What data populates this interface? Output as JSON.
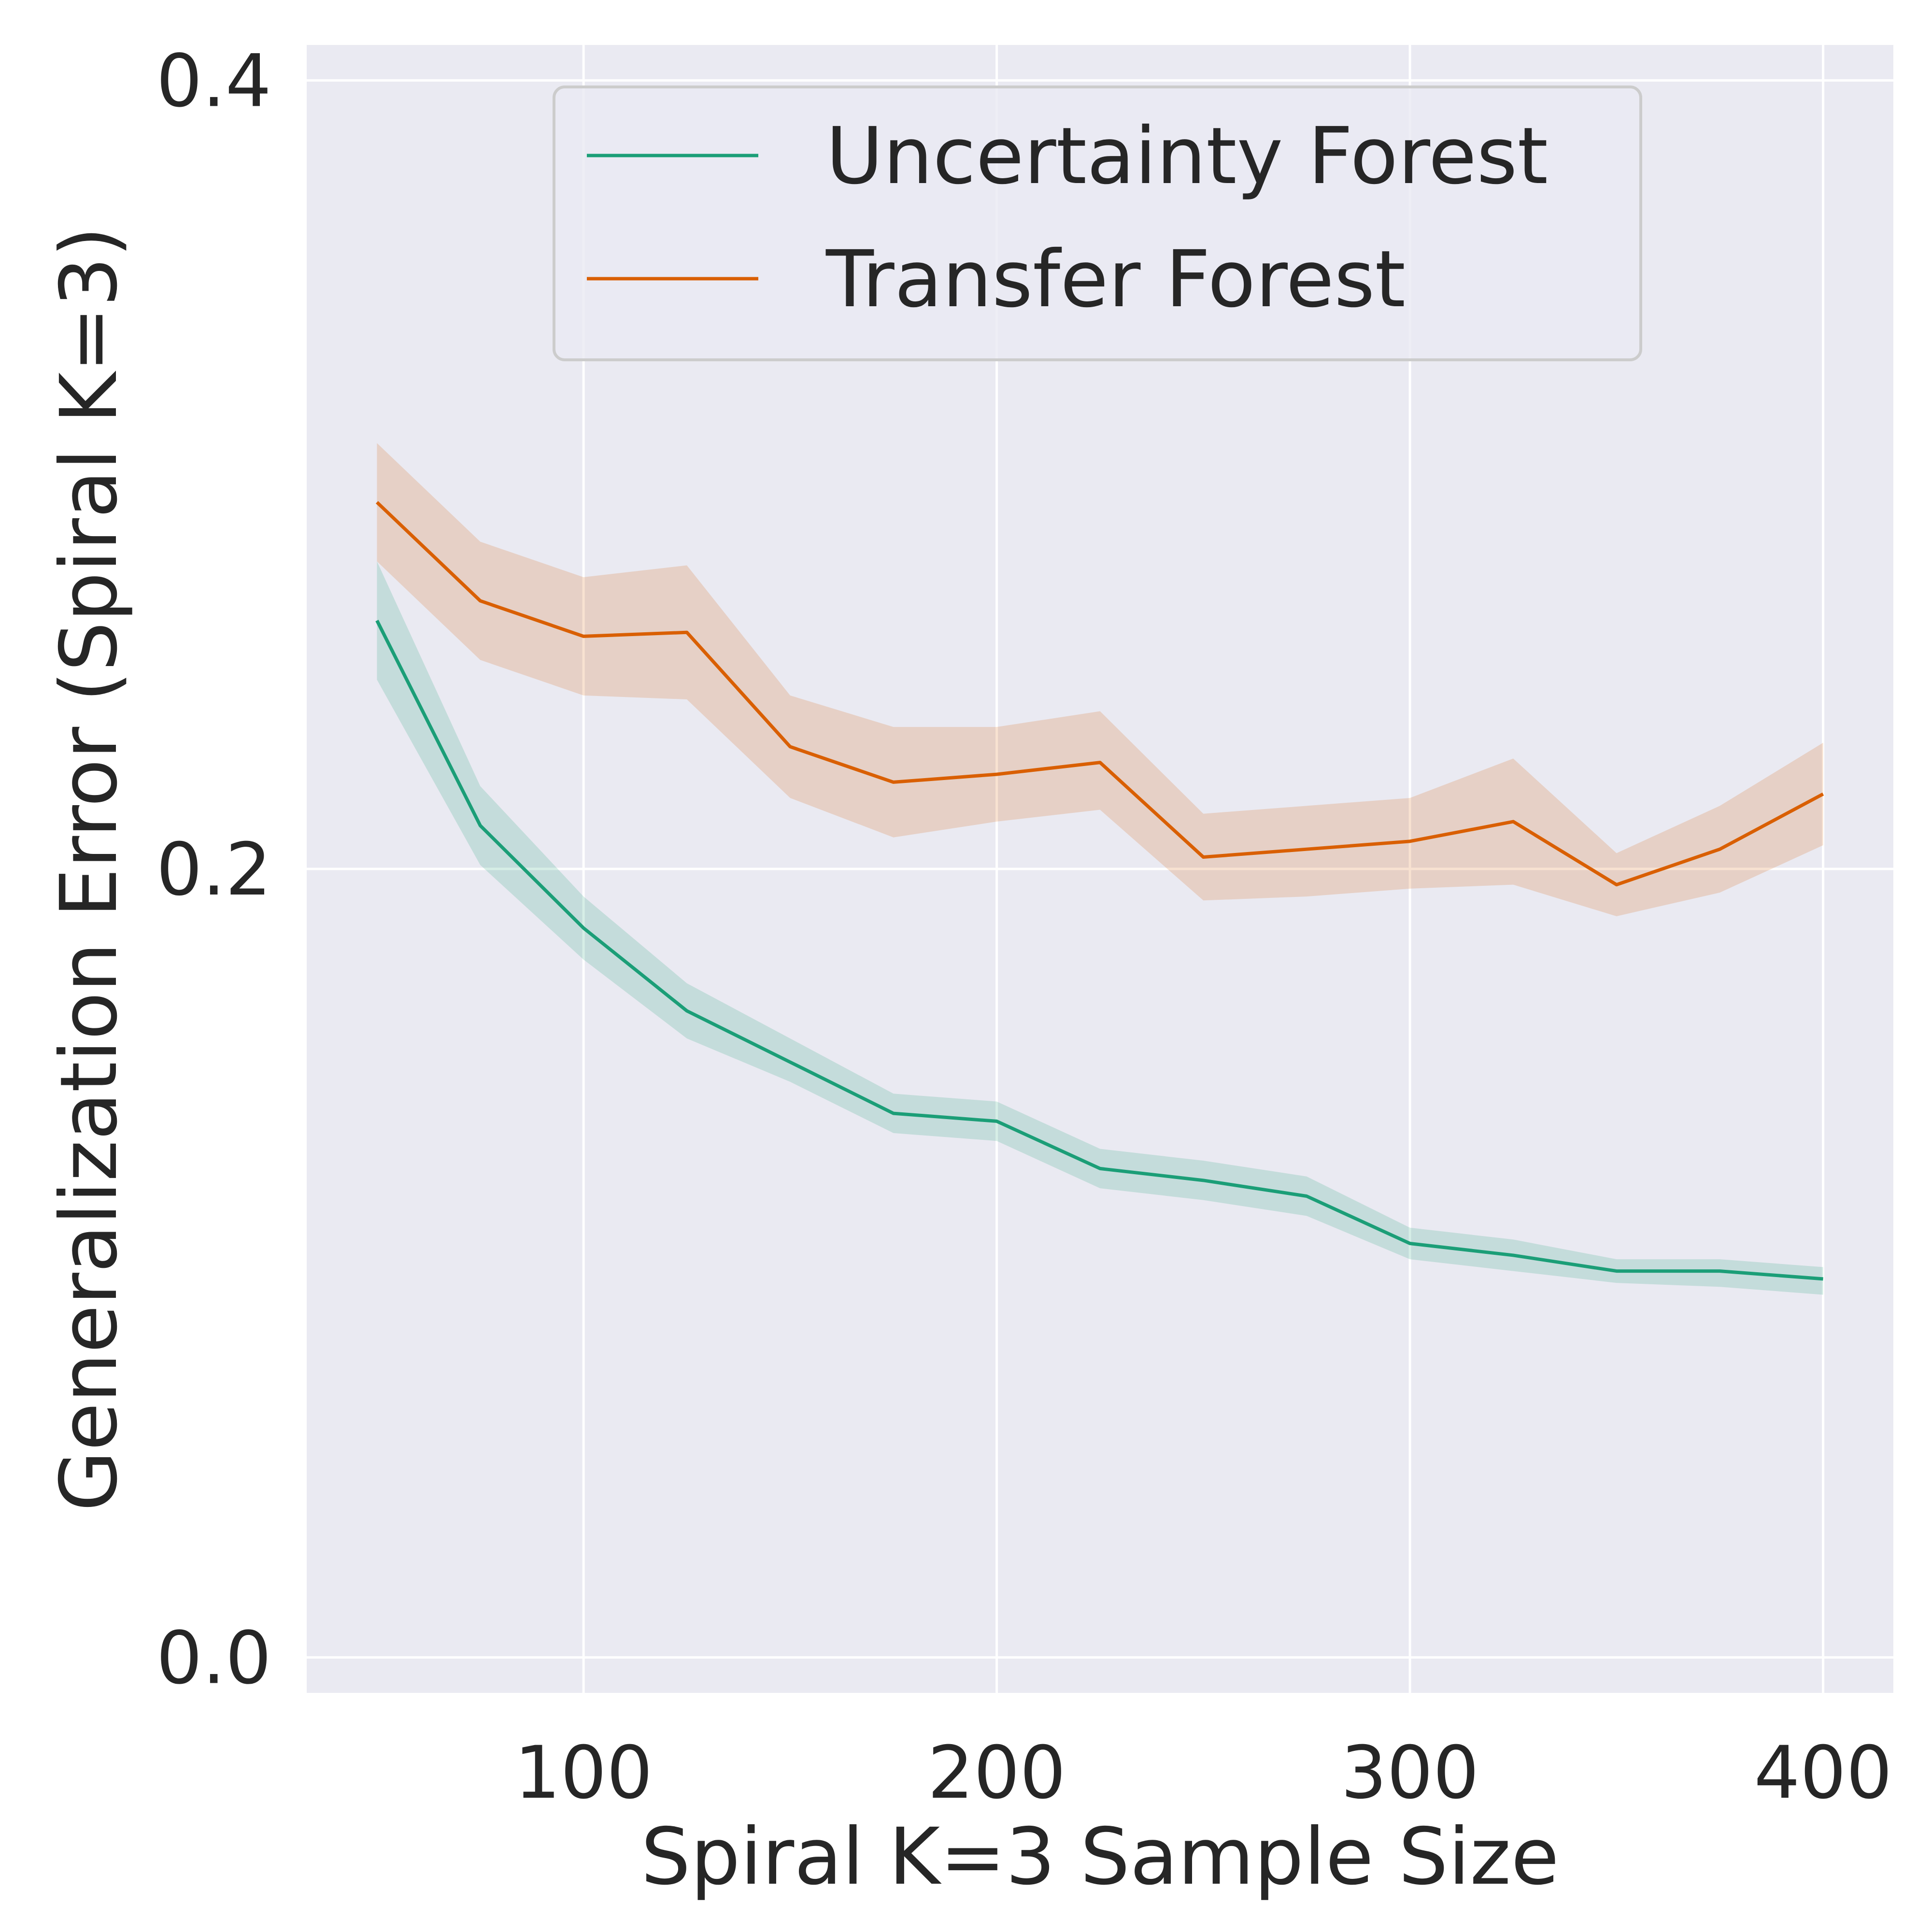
{
  "chart_data": {
    "type": "line",
    "title": "",
    "xlabel": "Spiral K=3 Sample Size",
    "ylabel": "Generalization Error (Spiral K=3)",
    "xlim": [
      33,
      417
    ],
    "ylim": [
      -0.009,
      0.409
    ],
    "xticks": [
      100,
      200,
      300,
      400
    ],
    "xtick_labels": [
      "100",
      "200",
      "300",
      "400"
    ],
    "yticks": [
      0.0,
      0.2,
      0.4
    ],
    "ytick_labels": [
      "0.0",
      "0.2",
      "0.4"
    ],
    "grid": true,
    "legend_position": "upper-center",
    "x": [
      50,
      75,
      100,
      125,
      150,
      175,
      200,
      225,
      250,
      275,
      300,
      325,
      350,
      375,
      400
    ],
    "series": [
      {
        "name": "Uncertainty Forest",
        "color": "#1b9e77",
        "values": [
          0.263,
          0.211,
          0.185,
          0.164,
          0.151,
          0.138,
          0.136,
          0.124,
          0.121,
          0.117,
          0.105,
          0.102,
          0.098,
          0.098,
          0.096
        ],
        "lower": [
          0.248,
          0.201,
          0.177,
          0.157,
          0.146,
          0.133,
          0.131,
          0.119,
          0.116,
          0.112,
          0.101,
          0.098,
          0.095,
          0.094,
          0.092
        ],
        "upper": [
          0.278,
          0.221,
          0.193,
          0.171,
          0.157,
          0.143,
          0.141,
          0.129,
          0.126,
          0.122,
          0.109,
          0.106,
          0.101,
          0.101,
          0.099
        ]
      },
      {
        "name": "Transfer Forest",
        "color": "#d95f02",
        "values": [
          0.293,
          0.268,
          0.259,
          0.26,
          0.231,
          0.222,
          0.224,
          0.227,
          0.203,
          0.205,
          0.207,
          0.212,
          0.196,
          0.205,
          0.219
        ],
        "lower": [
          0.278,
          0.253,
          0.244,
          0.243,
          0.218,
          0.208,
          0.212,
          0.215,
          0.192,
          0.193,
          0.195,
          0.196,
          0.188,
          0.194,
          0.206
        ],
        "upper": [
          0.308,
          0.283,
          0.274,
          0.277,
          0.244,
          0.236,
          0.236,
          0.24,
          0.214,
          0.216,
          0.218,
          0.228,
          0.204,
          0.216,
          0.232
        ]
      }
    ]
  }
}
